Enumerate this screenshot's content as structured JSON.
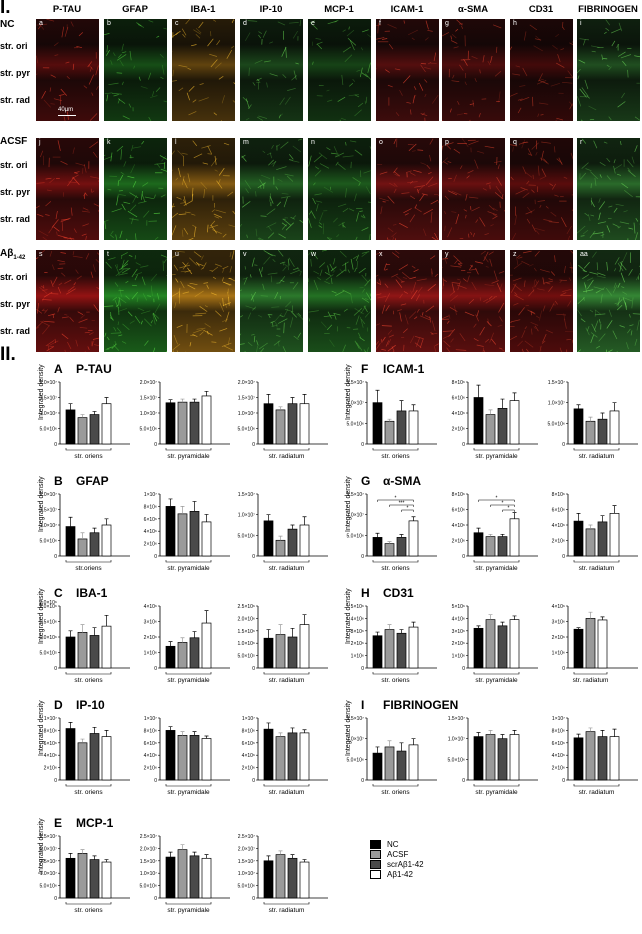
{
  "part_i": {
    "label": "I.",
    "columns": [
      "P-TAU",
      "GFAP",
      "IBA-1",
      "IP-10",
      "MCP-1",
      "ICAM-1",
      "α-SMA",
      "CD31",
      "FIBRINOGEN"
    ],
    "rows": [
      {
        "label": "NC",
        "letters": [
          "a",
          "b",
          "c",
          "d",
          "e",
          "f",
          "g",
          "h",
          "i"
        ],
        "scale": "40µm"
      },
      {
        "label": "ACSF",
        "letters": [
          "j",
          "k",
          "l",
          "m",
          "n",
          "o",
          "p",
          "q",
          "r"
        ]
      },
      {
        "label": "Aβ",
        "sub": "1-42",
        "letters": [
          "s",
          "t",
          "u",
          "v",
          "w",
          "x",
          "y",
          "z",
          "aa"
        ]
      }
    ],
    "layers": [
      "str. ori",
      "str. pyr",
      "str. rad"
    ],
    "tile_colors": {
      "P-TAU": "#c81818",
      "GFAP": "#2fb52f",
      "IBA-1": "#e39b1c",
      "IP-10": "#3aa43a",
      "MCP-1": "#2f9a2f",
      "ICAM-1": "#c41c1c",
      "α-SMA": "#b41818",
      "CD31": "#9a1212",
      "FIBRINOGEN": "#46b646"
    }
  },
  "part_ii": {
    "label": "II.",
    "ylabel": "Integrated density",
    "legend": [
      {
        "name": "NC",
        "color": "#000000"
      },
      {
        "name": "ACSF",
        "color": "#9a9a9a"
      },
      {
        "name": "scrAβ1-42",
        "color": "#4a4a4a"
      },
      {
        "name": "Aβ1-42",
        "color": "#ffffff"
      }
    ]
  },
  "chart_data": [
    {
      "panel": "A",
      "title": "P-TAU",
      "type": "bar",
      "xlabel": "str. oriens",
      "ylim": [
        0,
        20000000.0
      ],
      "yticks": [
        "0",
        "5.0×10⁶",
        "1.0×10⁷",
        "1.5×10⁷",
        "2.0×10⁷"
      ],
      "values": [
        11000000.0,
        8500000.0,
        9500000.0,
        13000000.0
      ],
      "errors": [
        2000000.0,
        1000000.0,
        1000000.0,
        2000000.0
      ]
    },
    {
      "panel": "A",
      "type": "bar",
      "xlabel": "str. pyramidale",
      "ylim": [
        0,
        20000000.0
      ],
      "yticks": [
        "0",
        "5.0×10⁶",
        "1.0×10⁷",
        "1.5×10⁷",
        "2.0×10⁷"
      ],
      "values": [
        13300000.0,
        13500000.0,
        13500000.0,
        15500000.0
      ],
      "errors": [
        1000000.0,
        1000000.0,
        1000000.0,
        1500000.0
      ]
    },
    {
      "panel": "A",
      "type": "bar",
      "xlabel": "str. radiatum",
      "ylim": [
        0,
        20000000.0
      ],
      "yticks": [
        "0",
        "5.0×10⁶",
        "1.0×10⁷",
        "1.5×10⁷",
        "2.0×10⁷"
      ],
      "values": [
        13000000.0,
        11000000.0,
        13000000.0,
        13000000.0
      ],
      "errors": [
        3000000.0,
        1000000.0,
        2000000.0,
        3000000.0
      ]
    },
    {
      "panel": "B",
      "title": "GFAP",
      "type": "bar",
      "xlabel": "str.oriens",
      "ylim": [
        0,
        20000000.0
      ],
      "yticks": [
        "0",
        "5.0×10⁶",
        "1.0×10⁷",
        "1.5×10⁷",
        "2.0×10⁷"
      ],
      "values": [
        9500000.0,
        5500000.0,
        7500000.0,
        10000000.0
      ],
      "errors": [
        3000000.0,
        2000000.0,
        1500000.0,
        2000000.0
      ]
    },
    {
      "panel": "B",
      "type": "bar",
      "xlabel": "str. pyramidale",
      "ylim": [
        0,
        10000000.0
      ],
      "yticks": [
        "0",
        "2×10⁶",
        "4×10⁶",
        "6×10⁶",
        "8×10⁶",
        "1×10⁷"
      ],
      "values": [
        8000000.0,
        6800000.0,
        7200000.0,
        5500000.0
      ],
      "errors": [
        1200000.0,
        1200000.0,
        1600000.0,
        1200000.0
      ]
    },
    {
      "panel": "B",
      "type": "bar",
      "xlabel": "str. radiatum",
      "ylim": [
        0,
        15000000.0
      ],
      "yticks": [
        "0",
        "5.0×10⁶",
        "1.0×10⁷",
        "1.5×10⁷"
      ],
      "values": [
        8500000.0,
        3800000.0,
        6500000.0,
        7500000.0
      ],
      "errors": [
        1500000.0,
        1000000.0,
        1000000.0,
        2000000.0
      ]
    },
    {
      "panel": "C",
      "title": "IBA-1",
      "type": "bar",
      "xlabel": "str. oriens",
      "ylim": [
        0,
        2000000.0
      ],
      "yticks": [
        "0",
        "5.0×10⁵",
        "1.0×10⁶",
        "1.5×10⁶",
        "2.0×10⁶"
      ],
      "values": [
        1000000.0,
        1150000.0,
        1050000.0,
        1350000.0
      ],
      "errors": [
        200000.0,
        250000.0,
        250000.0,
        350000.0
      ],
      "aux_text": "2.0×10⁶"
    },
    {
      "panel": "C",
      "type": "bar",
      "xlabel": "str. pyramidale",
      "ylim": [
        0,
        4000000.0
      ],
      "yticks": [
        "0",
        "1×10⁶",
        "2×10⁶",
        "3×10⁶",
        "4×10⁶"
      ],
      "values": [
        1400000.0,
        1650000.0,
        1950000.0,
        2900000.0
      ],
      "errors": [
        300000.0,
        300000.0,
        400000.0,
        800000.0
      ]
    },
    {
      "panel": "C",
      "type": "bar",
      "xlabel": "str. radiatum",
      "ylim": [
        0,
        2500000.0
      ],
      "yticks": [
        "0",
        "5.0×10⁵",
        "1.0×10⁶",
        "1.5×10⁶",
        "2.0×10⁶",
        "2.5×10⁶"
      ],
      "values": [
        1200000.0,
        1350000.0,
        1250000.0,
        1750000.0
      ],
      "errors": [
        350000.0,
        400000.0,
        350000.0,
        400000.0
      ]
    },
    {
      "panel": "D",
      "title": "IP-10",
      "type": "bar",
      "xlabel": "str. oriens",
      "ylim": [
        0,
        10000000.0
      ],
      "yticks": [
        "0",
        "2×10⁶",
        "4×10⁶",
        "6×10⁶",
        "8×10⁶",
        "1×10⁷"
      ],
      "values": [
        8300000.0,
        6000000.0,
        7500000.0,
        7000000.0
      ],
      "errors": [
        1000000.0,
        600000.0,
        1000000.0,
        1000000.0
      ]
    },
    {
      "panel": "D",
      "type": "bar",
      "xlabel": "str. pyramidale",
      "ylim": [
        0,
        10000000.0
      ],
      "yticks": [
        "0",
        "2×10⁶",
        "4×10⁶",
        "6×10⁶",
        "8×10⁶",
        "1×10⁷"
      ],
      "values": [
        8000000.0,
        7200000.0,
        7200000.0,
        6700000.0
      ],
      "errors": [
        600000.0,
        600000.0,
        600000.0,
        400000.0
      ]
    },
    {
      "panel": "D",
      "type": "bar",
      "xlabel": "str. radiatum",
      "ylim": [
        0,
        10000000.0
      ],
      "yticks": [
        "0",
        "2×10⁶",
        "4×10⁶",
        "6×10⁶",
        "8×10⁶",
        "1×10⁷"
      ],
      "values": [
        8200000.0,
        7000000.0,
        7600000.0,
        7600000.0
      ],
      "errors": [
        1000000.0,
        600000.0,
        800000.0,
        500000.0
      ]
    },
    {
      "panel": "E",
      "title": "MCP-1",
      "type": "bar",
      "xlabel": "str. oriens",
      "ylim": [
        0,
        25000000.0
      ],
      "yticks": [
        "0",
        "5.0×10⁶",
        "1.0×10⁷",
        "1.5×10⁷",
        "2.0×10⁷",
        "2.5×10⁷"
      ],
      "values": [
        16000000.0,
        18000000.0,
        15500000.0,
        14500000.0
      ],
      "errors": [
        2000000.0,
        1500000.0,
        1500000.0,
        1000000.0
      ]
    },
    {
      "panel": "E",
      "type": "bar",
      "xlabel": "str. pyramidale",
      "ylim": [
        0,
        25000000.0
      ],
      "yticks": [
        "0",
        "5.0×10⁶",
        "1.0×10⁷",
        "1.5×10⁷",
        "2.0×10⁷",
        "2.5×10⁷"
      ],
      "values": [
        16500000.0,
        19500000.0,
        17000000.0,
        16000000.0
      ],
      "errors": [
        2000000.0,
        2000000.0,
        1500000.0,
        1500000.0
      ]
    },
    {
      "panel": "E",
      "type": "bar",
      "xlabel": "str. radiatum",
      "ylim": [
        0,
        25000000.0
      ],
      "yticks": [
        "0",
        "5.0×10⁶",
        "1.0×10⁷",
        "1.5×10⁷",
        "2.0×10⁷",
        "2.5×10⁷"
      ],
      "values": [
        15000000.0,
        17500000.0,
        16000000.0,
        14500000.0
      ],
      "errors": [
        2000000.0,
        1500000.0,
        1500000.0,
        1000000.0
      ]
    },
    {
      "panel": "F",
      "title": "ICAM-1",
      "type": "bar",
      "xlabel": "str. oriens",
      "ylim": [
        0,
        15000000.0
      ],
      "yticks": [
        "0",
        "5.0×10⁶",
        "1.0×10⁷",
        "1.5×10⁷"
      ],
      "values": [
        10000000.0,
        5500000.0,
        8000000.0,
        8000000.0
      ],
      "errors": [
        3000000.0,
        500000.0,
        2500000.0,
        1500000.0
      ]
    },
    {
      "panel": "F",
      "type": "bar",
      "xlabel": "str. pyramidale",
      "ylim": [
        0,
        8000000.0
      ],
      "yticks": [
        "0",
        "2×10⁶",
        "4×10⁶",
        "6×10⁶",
        "8×10⁶"
      ],
      "values": [
        6000000.0,
        3800000.0,
        4600000.0,
        5600000.0
      ],
      "errors": [
        1600000.0,
        600000.0,
        1200000.0,
        1000000.0
      ]
    },
    {
      "panel": "F",
      "type": "bar",
      "xlabel": "str. radiatum",
      "ylim": [
        0,
        15000000.0
      ],
      "yticks": [
        "0",
        "5.0×10⁶",
        "1.0×10⁷",
        "1.5×10⁷"
      ],
      "values": [
        8500000.0,
        5500000.0,
        6000000.0,
        8000000.0
      ],
      "errors": [
        1000000.0,
        1000000.0,
        1500000.0,
        2000000.0
      ]
    },
    {
      "panel": "G",
      "title": "α-SMA",
      "type": "bar",
      "xlabel": "str. oriens",
      "ylim": [
        0,
        15000000.0
      ],
      "yticks": [
        "0",
        "5.0×10⁶",
        "1.0×10⁷",
        "1.5×10⁷"
      ],
      "values": [
        4500000.0,
        3000000.0,
        4500000.0,
        8500000.0
      ],
      "errors": [
        1000000.0,
        500000.0,
        700000.0,
        1000000.0
      ],
      "annotations": [
        "*",
        "***",
        "*"
      ]
    },
    {
      "panel": "G",
      "type": "bar",
      "xlabel": "str. pyramidale",
      "ylim": [
        0,
        8000000.0
      ],
      "yticks": [
        "0",
        "2×10⁶",
        "4×10⁶",
        "6×10⁶",
        "8×10⁶"
      ],
      "values": [
        3000000.0,
        2500000.0,
        2500000.0,
        4800000.0
      ],
      "errors": [
        600000.0,
        300000.0,
        300000.0,
        800000.0
      ],
      "annotations": [
        "*",
        "*",
        "*"
      ]
    },
    {
      "panel": "G",
      "type": "bar",
      "xlabel": "str. radiatum",
      "ylim": [
        0,
        8000000.0
      ],
      "yticks": [
        "0",
        "2×10⁶",
        "4×10⁶",
        "6×10⁶",
        "8×10⁶"
      ],
      "values": [
        4500000.0,
        3500000.0,
        4400000.0,
        5500000.0
      ],
      "errors": [
        1000000.0,
        500000.0,
        800000.0,
        1000000.0
      ]
    },
    {
      "panel": "H",
      "title": "CD31",
      "type": "bar",
      "xlabel": "str. oriens",
      "ylim": [
        0,
        5000000.0
      ],
      "yticks": [
        "0",
        "1×10⁶",
        "2×10⁶",
        "3×10⁶",
        "4×10⁶",
        "5×10⁶"
      ],
      "values": [
        2600000.0,
        3100000.0,
        2800000.0,
        3300000.0
      ],
      "errors": [
        300000.0,
        400000.0,
        300000.0,
        400000.0
      ]
    },
    {
      "panel": "H",
      "type": "bar",
      "xlabel": "str. pyramidale",
      "ylim": [
        0,
        5000000.0
      ],
      "yticks": [
        "0",
        "1×10⁶",
        "2×10⁶",
        "3×10⁶",
        "4×10⁶",
        "5×10⁶"
      ],
      "values": [
        3200000.0,
        3900000.0,
        3400000.0,
        3900000.0
      ],
      "errors": [
        200000.0,
        400000.0,
        300000.0,
        300000.0
      ]
    },
    {
      "panel": "H",
      "type": "bar",
      "xlabel": "str. radiatum",
      "ylim": [
        0,
        4000000.0
      ],
      "yticks": [
        "0",
        "1×10⁶",
        "2×10⁶",
        "3×10⁶",
        "4×10⁶"
      ],
      "values": [
        2500000.0,
        3200000.0,
        3100000.0
      ],
      "errors": [
        100000.0,
        400000.0,
        200000.0
      ],
      "bar_groups": [
        "NC",
        "ACSF",
        "Aβ1-42"
      ]
    },
    {
      "panel": "I",
      "title": "FIBRINOGEN",
      "type": "bar",
      "xlabel": "str. oriens",
      "ylim": [
        0,
        15000000.0
      ],
      "yticks": [
        "0",
        "5.0×10⁶",
        "1.0×10⁷",
        "1.5×10⁷"
      ],
      "values": [
        6500000.0,
        8000000.0,
        7000000.0,
        8500000.0
      ],
      "errors": [
        1500000.0,
        1500000.0,
        2000000.0,
        1500000.0
      ]
    },
    {
      "panel": "I",
      "type": "bar",
      "xlabel": "str. pyramidale",
      "ylim": [
        0,
        15000000.0
      ],
      "yticks": [
        "0",
        "5.0×10⁶",
        "1.0×10⁷",
        "1.5×10⁷"
      ],
      "values": [
        10500000.0,
        11000000.0,
        10000000.0,
        11000000.0
      ],
      "errors": [
        1000000.0,
        1000000.0,
        1000000.0,
        1000000.0
      ]
    },
    {
      "panel": "I",
      "type": "bar",
      "xlabel": "str. radiatum",
      "ylim": [
        0,
        10000000.0
      ],
      "yticks": [
        "0",
        "2×10⁶",
        "4×10⁶",
        "6×10⁶",
        "8×10⁶",
        "1×10⁷"
      ],
      "values": [
        6800000.0,
        7800000.0,
        7000000.0,
        7000000.0
      ],
      "errors": [
        600000.0,
        600000.0,
        1000000.0,
        1200000.0
      ]
    }
  ]
}
